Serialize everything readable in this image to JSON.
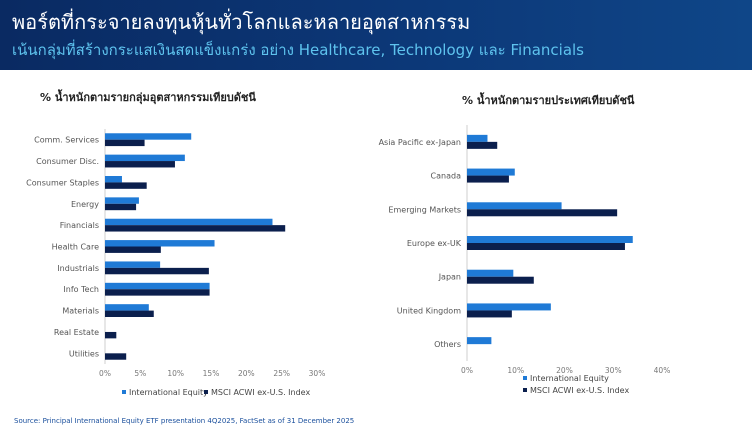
{
  "header": {
    "title": "พอร์ตที่กระจายลงทุนหุ้นทั่วโลกและหลายอุตสาหกรรม",
    "subtitle": "เน้นกลุ่มที่สร้างกระแสเงินสดแข็งแกร่ง อย่าง Healthcare, Technology และ Financials"
  },
  "footer": {
    "source": "Source: Principal International Equity ETF presentation 4Q2025, FactSet as of 31 December 2025"
  },
  "colors": {
    "international_equity": "#1f7ad6",
    "msci_index": "#0b1f4d"
  },
  "chart_data": [
    {
      "type": "bar",
      "orientation": "horizontal",
      "title": "% น้ำหนักตามรายกลุ่มอุตสาหกรรมเทียบดัชนี",
      "categories": [
        "Comm. Services",
        "Consumer Disc.",
        "Consumer Staples",
        "Energy",
        "Financials",
        "Health Care",
        "Industrials",
        "Info Tech",
        "Materials",
        "Real Estate",
        "Utilities"
      ],
      "series": [
        {
          "name": "International Equity",
          "values": [
            12.2,
            11.3,
            2.4,
            4.8,
            23.7,
            15.5,
            7.8,
            14.8,
            6.2,
            0,
            0
          ]
        },
        {
          "name": "MSCI ACWI ex-U.S. Index",
          "values": [
            5.6,
            9.9,
            5.9,
            4.4,
            25.5,
            7.9,
            14.7,
            14.8,
            6.9,
            1.6,
            3.0
          ]
        }
      ],
      "x_ticks": [
        "0%",
        "5%",
        "10%",
        "15%",
        "20%",
        "25%",
        "30%"
      ],
      "xlim": [
        0,
        30
      ],
      "legend": "bottom"
    },
    {
      "type": "bar",
      "orientation": "horizontal",
      "title": "% น้ำหนักตามรายประเทศเทียบดัชนี",
      "categories": [
        "Asia Pacific ex-Japan",
        "Canada",
        "Emerging Markets",
        "Europe ex-UK",
        "Japan",
        "United Kingdom",
        "Others"
      ],
      "series": [
        {
          "name": "International Equity",
          "values": [
            4.2,
            9.8,
            19.4,
            34.0,
            9.5,
            17.2,
            5.0
          ]
        },
        {
          "name": "MSCI ACWI ex-U.S. Index",
          "values": [
            6.2,
            8.6,
            30.8,
            32.4,
            13.7,
            9.2,
            0
          ]
        }
      ],
      "x_ticks": [
        "0%",
        "10%",
        "20%",
        "30%",
        "40%"
      ],
      "xlim": [
        0,
        40
      ],
      "legend": "bottom"
    }
  ]
}
